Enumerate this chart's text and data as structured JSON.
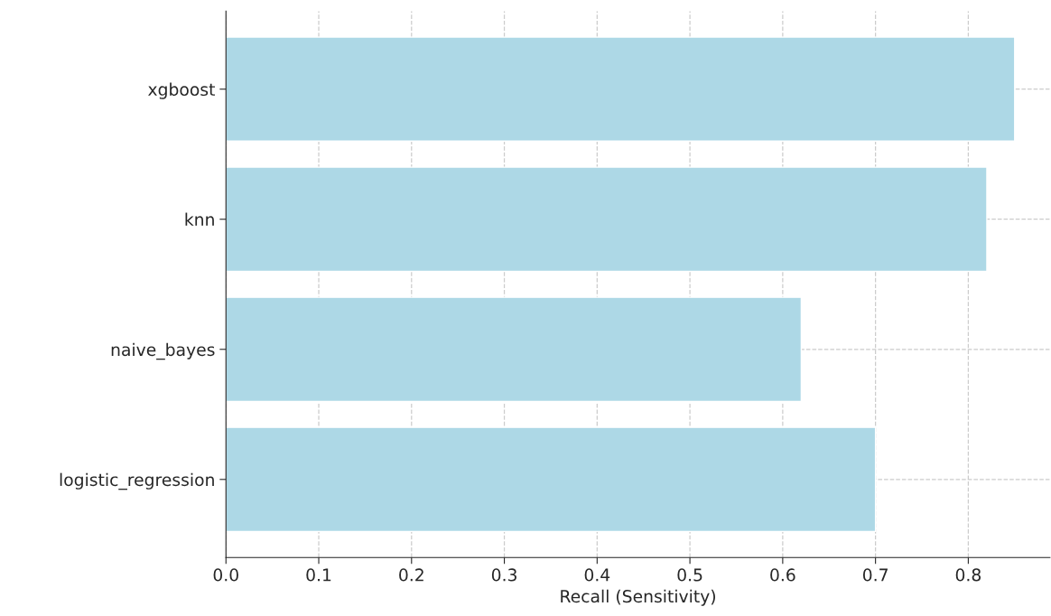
{
  "chart_data": {
    "type": "bar",
    "orientation": "horizontal",
    "xlabel": "Recall (Sensitivity)",
    "categories": [
      "xgboost",
      "knn",
      "naive_bayes",
      "logistic_regression"
    ],
    "values": [
      0.85,
      0.82,
      0.62,
      0.7
    ],
    "color": "#add8e6",
    "xlim": [
      0,
      0.888
    ],
    "xticks": [
      {
        "value": 0,
        "label": "0.0"
      },
      0.1,
      0.2,
      0.3,
      0.4,
      0.5,
      0.6,
      0.7,
      0.8
    ],
    "grid": true,
    "line_style": "dashed"
  }
}
